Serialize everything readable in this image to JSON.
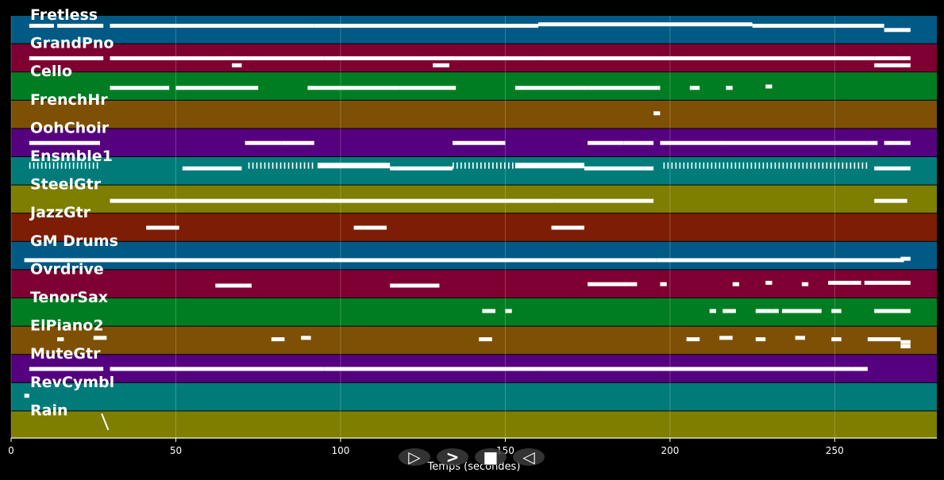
{
  "x_axis": {
    "label": "Temps (secondes)",
    "ticks": [
      "0",
      "50",
      "100",
      "150",
      "200",
      "250"
    ],
    "tick_values": [
      0,
      50,
      100,
      150,
      200,
      250
    ],
    "range": [
      0,
      281
    ]
  },
  "colors": {
    "background": "#000000",
    "note": "#ffffff",
    "track_palette": [
      "#005a85",
      "#7e0032",
      "#007d22",
      "#7d5005",
      "#55007e",
      "#007b7a",
      "#7e7e00",
      "#7d1d05"
    ]
  },
  "tracks": [
    {
      "name": "Fretless",
      "color": "#005a85",
      "notes": [
        [
          5.5,
          13,
          0.35
        ],
        [
          14,
          28,
          0.35
        ],
        [
          30,
          92,
          0.35
        ],
        [
          92,
          160,
          0.35
        ],
        [
          160,
          225,
          0.3
        ],
        [
          225,
          265,
          0.35
        ],
        [
          265,
          273,
          0.5
        ]
      ]
    },
    {
      "name": "GrandPno",
      "color": "#7e0032",
      "notes": [
        [
          5.5,
          28,
          0.5
        ],
        [
          30,
          95,
          0.5
        ],
        [
          95,
          160,
          0.5
        ],
        [
          160,
          200,
          0.5
        ],
        [
          200,
          262,
          0.5
        ],
        [
          262,
          273,
          0.5
        ],
        [
          67,
          70,
          0.75
        ],
        [
          128,
          133,
          0.75
        ],
        [
          262,
          273,
          0.75
        ]
      ]
    },
    {
      "name": "Cello",
      "color": "#007d22",
      "notes": [
        [
          30,
          48,
          0.55
        ],
        [
          50,
          63,
          0.55
        ],
        [
          63,
          75,
          0.55
        ],
        [
          90,
          118,
          0.55
        ],
        [
          118,
          135,
          0.55
        ],
        [
          153,
          175,
          0.55
        ],
        [
          175,
          197,
          0.55
        ],
        [
          206,
          209,
          0.55
        ],
        [
          217,
          219,
          0.55
        ],
        [
          229,
          231,
          0.5
        ]
      ]
    },
    {
      "name": "FrenchHr",
      "color": "#7d5005",
      "notes": [
        [
          195,
          197,
          0.45
        ]
      ]
    },
    {
      "name": "OohChoir",
      "color": "#55007e",
      "notes": [
        [
          5.5,
          16,
          0.5
        ],
        [
          16,
          27,
          0.5
        ],
        [
          71,
          82,
          0.5
        ],
        [
          82,
          92,
          0.5
        ],
        [
          134,
          150,
          0.5
        ],
        [
          175,
          186,
          0.5
        ],
        [
          186,
          195,
          0.5
        ],
        [
          197,
          217,
          0.5
        ],
        [
          217,
          260,
          0.5
        ],
        [
          260,
          263,
          0.5
        ],
        [
          265,
          273,
          0.5
        ]
      ]
    },
    {
      "name": "Ensmble1",
      "color": "#007b7a",
      "notes": [
        [
          5.5,
          27,
          0.3,
          "tick"
        ],
        [
          52,
          70,
          0.4
        ],
        [
          72,
          92,
          0.3,
          "tick"
        ],
        [
          93,
          115,
          0.3,
          "block"
        ],
        [
          115,
          134,
          0.4
        ],
        [
          134,
          153,
          0.3,
          "tick"
        ],
        [
          153,
          174,
          0.3,
          "block"
        ],
        [
          174,
          195,
          0.4
        ],
        [
          198,
          260,
          0.3,
          "tick"
        ],
        [
          262,
          273,
          0.4
        ]
      ]
    },
    {
      "name": "SteelGtr",
      "color": "#7e7e00",
      "notes": [
        [
          30,
          95,
          0.55
        ],
        [
          95,
          165,
          0.55
        ],
        [
          165,
          195,
          0.55
        ],
        [
          262,
          272,
          0.55
        ]
      ]
    },
    {
      "name": "JazzGtr",
      "color": "#7d1d05",
      "notes": [
        [
          41,
          51,
          0.5
        ],
        [
          104,
          114,
          0.5
        ],
        [
          164,
          174,
          0.5
        ]
      ]
    },
    {
      "name": "GM Drums",
      "color": "#005a85",
      "notes": [
        [
          4,
          98,
          0.65
        ],
        [
          98,
          196,
          0.65
        ],
        [
          196,
          271,
          0.65
        ],
        [
          270,
          273,
          0.6
        ]
      ]
    },
    {
      "name": "Ovrdrive",
      "color": "#7e0032",
      "notes": [
        [
          62,
          73,
          0.55
        ],
        [
          115,
          130,
          0.55
        ],
        [
          175,
          190,
          0.5
        ],
        [
          197,
          199,
          0.5
        ],
        [
          219,
          221,
          0.5
        ],
        [
          229,
          231,
          0.45
        ],
        [
          240,
          242,
          0.5
        ],
        [
          248,
          258,
          0.45
        ],
        [
          259,
          273,
          0.45
        ]
      ]
    },
    {
      "name": "TenorSax",
      "color": "#007d22",
      "notes": [
        [
          143,
          147,
          0.45
        ],
        [
          150,
          152,
          0.45
        ],
        [
          212,
          214,
          0.45
        ],
        [
          216,
          220,
          0.45
        ],
        [
          226,
          233,
          0.45
        ],
        [
          234,
          246,
          0.45
        ],
        [
          249,
          252,
          0.45
        ],
        [
          262,
          273,
          0.45
        ]
      ]
    },
    {
      "name": "ElPiano2",
      "color": "#7d5005",
      "notes": [
        [
          14,
          16,
          0.45
        ],
        [
          25,
          29,
          0.4
        ],
        [
          79,
          83,
          0.45
        ],
        [
          88,
          91,
          0.4
        ],
        [
          142,
          146,
          0.45
        ],
        [
          205,
          209,
          0.45
        ],
        [
          215,
          219,
          0.4
        ],
        [
          226,
          229,
          0.45
        ],
        [
          238,
          241,
          0.4
        ],
        [
          249,
          252,
          0.45
        ],
        [
          260,
          270,
          0.45
        ],
        [
          270,
          273,
          0.55
        ],
        [
          270,
          273,
          0.7
        ]
      ]
    },
    {
      "name": "MuteGtr",
      "color": "#55007e",
      "notes": [
        [
          5.5,
          28,
          0.5
        ],
        [
          30,
          95,
          0.5
        ],
        [
          95,
          160,
          0.5
        ],
        [
          160,
          197,
          0.5
        ],
        [
          197,
          255,
          0.5
        ],
        [
          255,
          260,
          0.5
        ]
      ]
    },
    {
      "name": "RevCymbl",
      "color": "#007b7a",
      "notes": [
        [
          4,
          5.5,
          0.45
        ]
      ]
    },
    {
      "name": "Rain",
      "color": "#7e7e00",
      "notes": [
        [
          27.5,
          29.5,
          0.45,
          "diag"
        ]
      ]
    }
  ],
  "controls": [
    {
      "name": "play-triangle-button",
      "glyph": "▷"
    },
    {
      "name": "forward-button",
      "glyph": ">"
    },
    {
      "name": "stop-button",
      "glyph": "■"
    },
    {
      "name": "back-button",
      "glyph": "◁"
    }
  ]
}
